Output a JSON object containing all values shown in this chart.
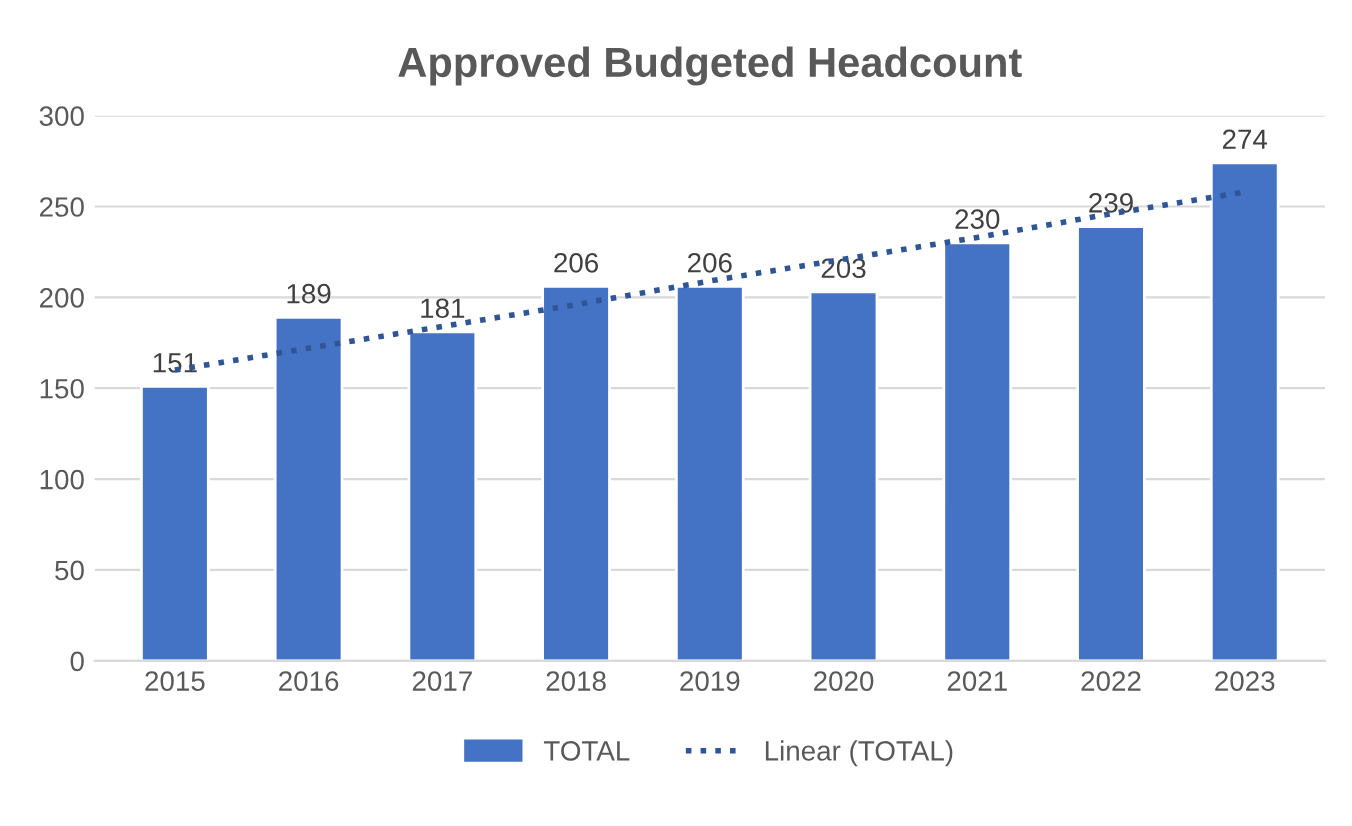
{
  "chart_data": {
    "type": "bar",
    "title": "Approved Budgeted Headcount",
    "categories": [
      "2015",
      "2016",
      "2017",
      "2018",
      "2019",
      "2020",
      "2021",
      "2022",
      "2023"
    ],
    "series": [
      {
        "name": "TOTAL",
        "color": "#4472c4",
        "values": [
          151,
          189,
          181,
          206,
          206,
          203,
          230,
          239,
          274
        ],
        "value_labels": [
          "151",
          "189",
          "181",
          "206",
          "206",
          "203",
          "230",
          "239",
          "274"
        ]
      },
      {
        "name": "Linear (TOTAL)",
        "type": "line",
        "line_style": "dotted",
        "color": "#2f5597",
        "values": [
          160,
          172,
          184,
          196,
          209,
          221,
          233,
          246,
          258
        ]
      }
    ],
    "ylim": [
      0,
      300
    ],
    "yticks": [
      0,
      50,
      100,
      150,
      200,
      250,
      300
    ],
    "grid": "y",
    "legend": "bottom"
  }
}
